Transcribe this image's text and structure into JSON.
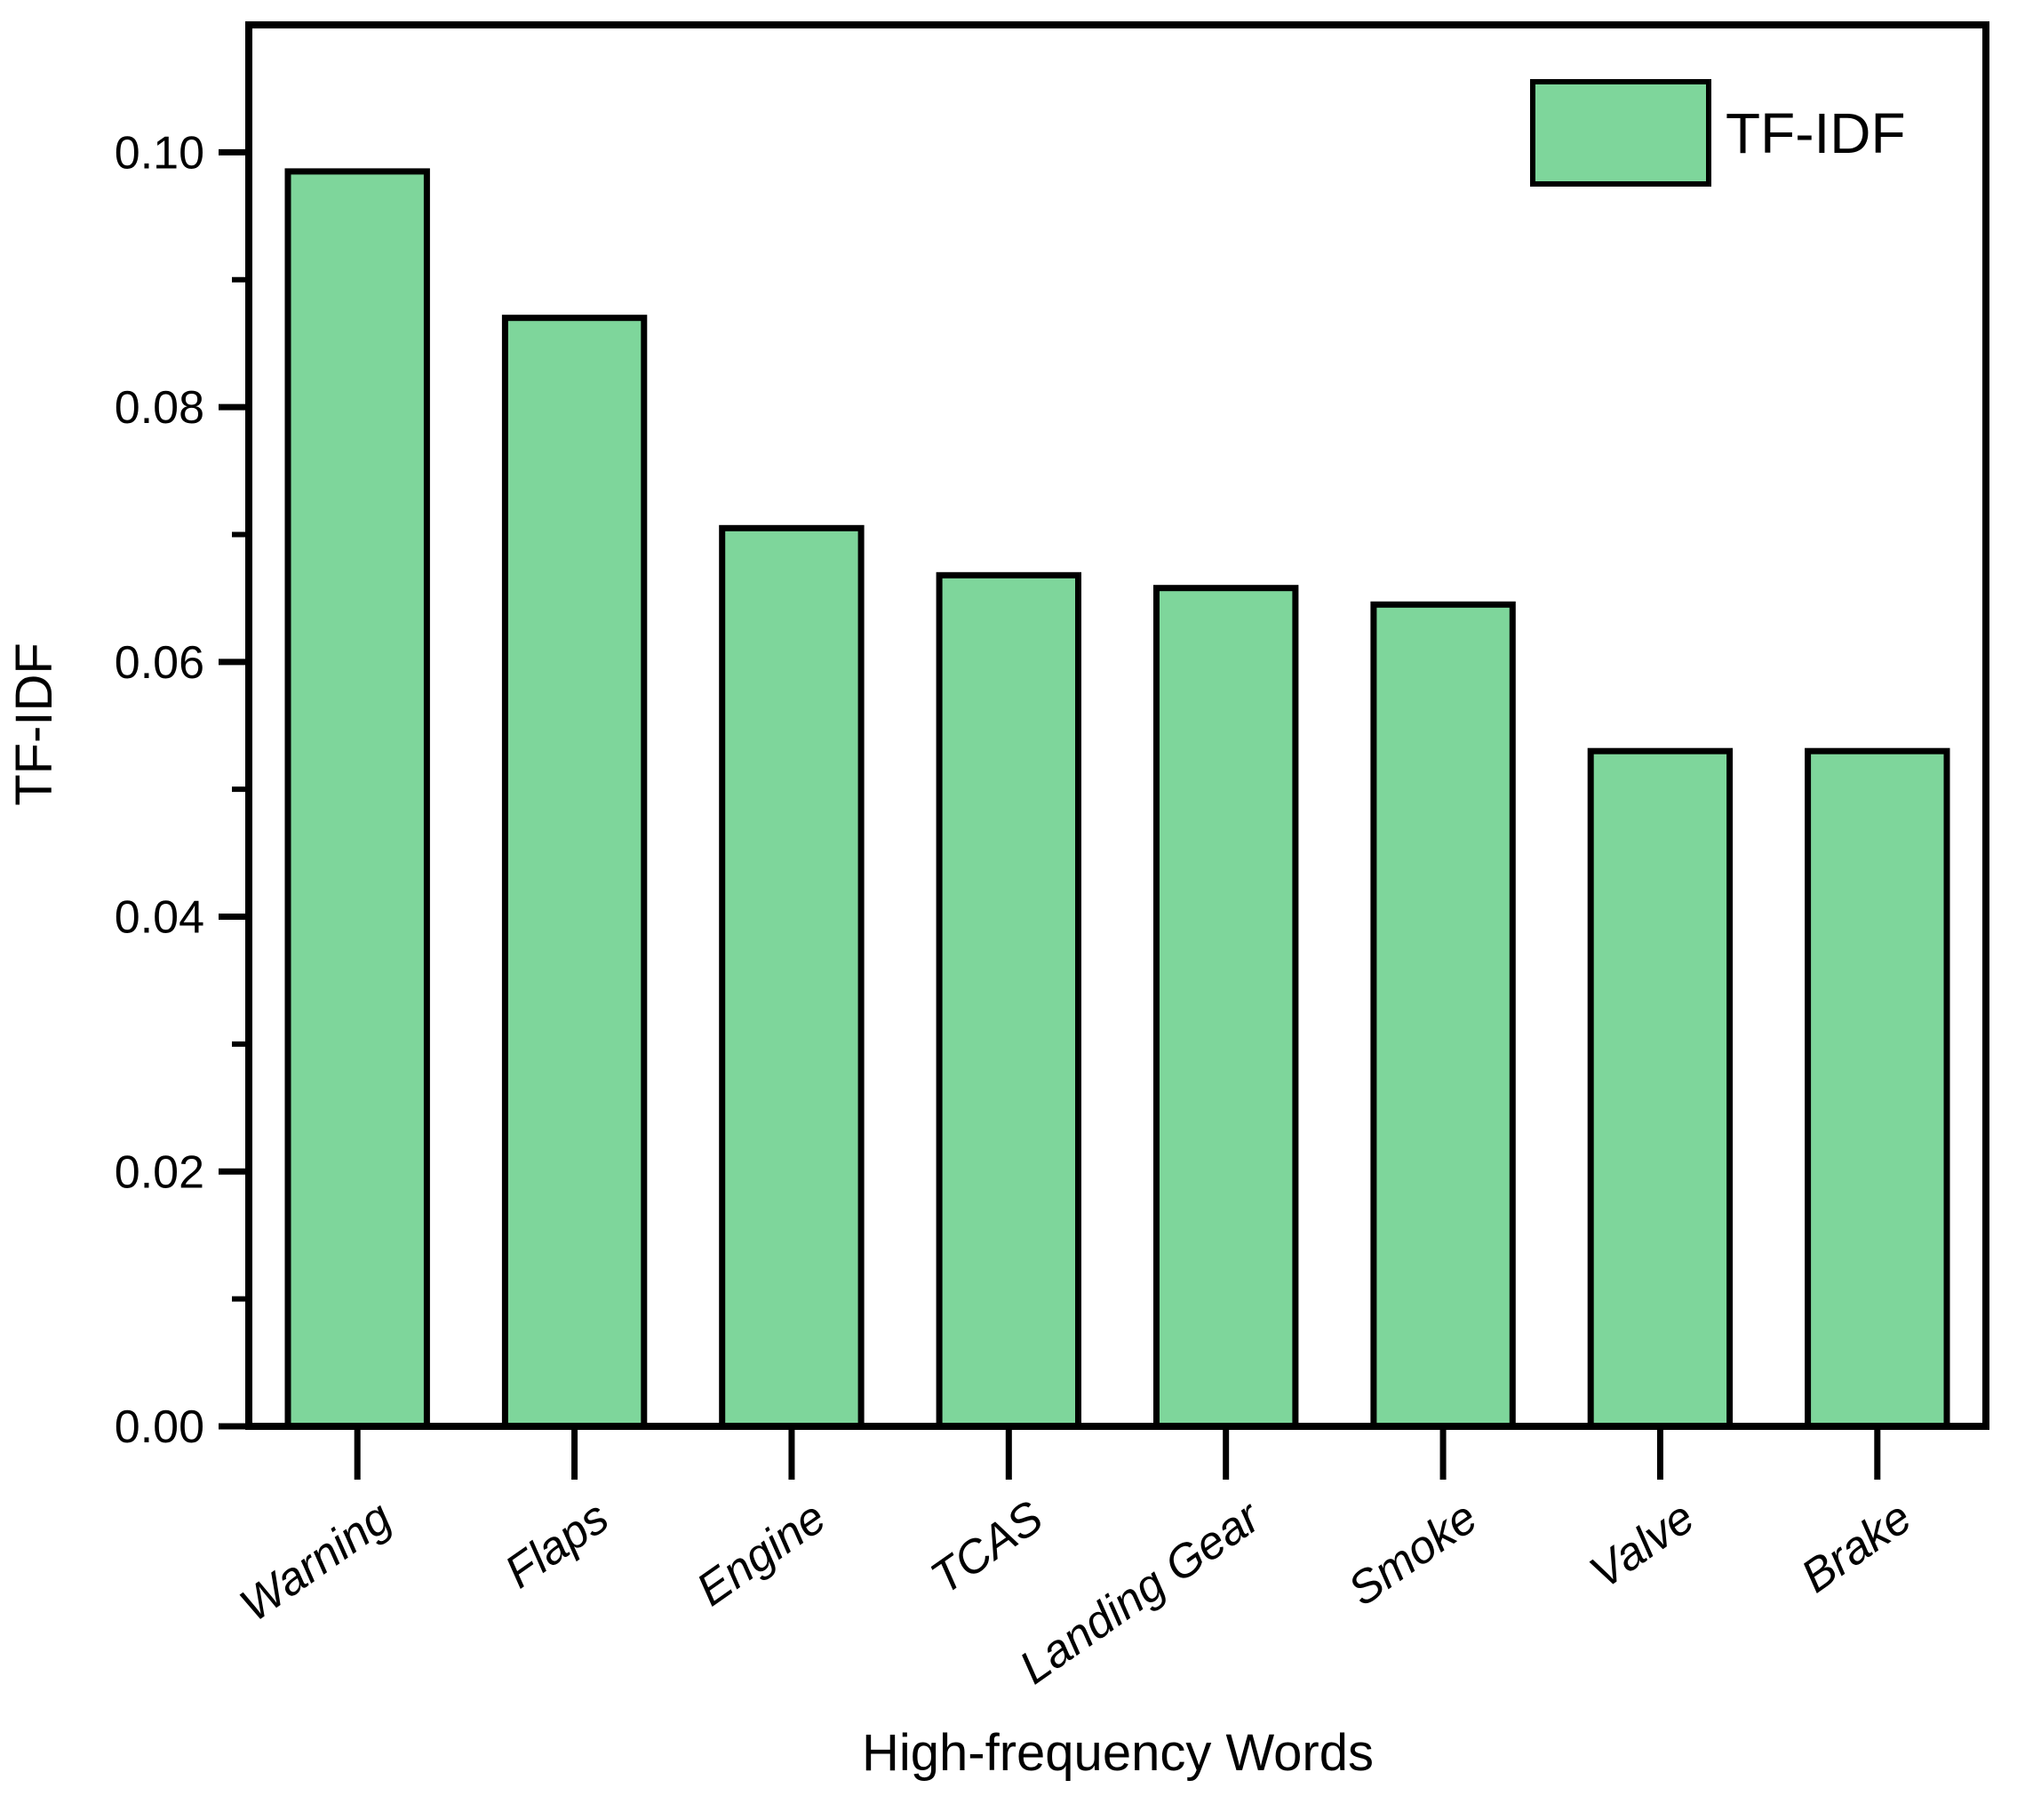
{
  "chart_data": {
    "type": "bar",
    "title": "",
    "categories": [
      "Warning",
      "Flaps",
      "Engine",
      "TCAS",
      "Landing Gear",
      "Smoke",
      "Valve",
      "Brake"
    ],
    "values": [
      0.0985,
      0.087,
      0.0705,
      0.0668,
      0.0658,
      0.0645,
      0.053,
      0.053
    ],
    "series_name": "TF-IDF",
    "xlabel": "High-frequency Words",
    "ylabel": "TF-IDF",
    "ylim": [
      0,
      0.11
    ],
    "ytick_values": [
      0.0,
      0.02,
      0.04,
      0.06,
      0.08,
      0.1
    ],
    "ytick_labels": [
      "0.00",
      "0.02",
      "0.04",
      "0.06",
      "0.08",
      "0.10"
    ],
    "minor_tick_step": 0.01,
    "grid": false,
    "bar_fill": "#7ed69b",
    "bar_stroke": "#000000",
    "axis_color": "#000000",
    "legend": {
      "label": "TF-IDF",
      "position": "top-right",
      "swatch_color": "#7ed69b",
      "swatch_border": "#000000"
    }
  }
}
